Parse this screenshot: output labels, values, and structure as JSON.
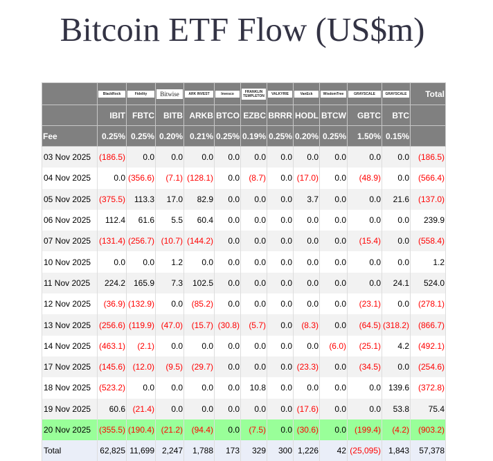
{
  "title": "Bitcoin ETF Flow (US$m)",
  "colors": {
    "header_bg": "#808080",
    "negative": "#ff0000",
    "highlight_row": "#99ff99",
    "total_row": "#eaeef8",
    "stripe": "#f2f2f2"
  },
  "issuers": [
    "BlackRock",
    "Fidelity",
    "Bitwise",
    "ARK INVEST",
    "Invesco",
    "FRANKLIN TEMPLETON",
    "VALKYRIE",
    "VanEck",
    "WisdomTree",
    "GRAYSCALE",
    "GRAYSCALE"
  ],
  "total_label": "Total",
  "tickers": [
    "IBIT",
    "FBTC",
    "BITB",
    "ARKB",
    "BTCO",
    "EZBC",
    "BRRR",
    "HODL",
    "BTCW",
    "GBTC",
    "BTC"
  ],
  "fee_label": "Fee",
  "fees": [
    "0.25%",
    "0.25%",
    "0.20%",
    "0.21%",
    "0.25%",
    "0.19%",
    "0.25%",
    "0.20%",
    "0.25%",
    "1.50%",
    "0.15%"
  ],
  "rows": [
    {
      "date": "03 Nov 2025",
      "values": [
        "(186.5)",
        "0.0",
        "0.0",
        "0.0",
        "0.0",
        "0.0",
        "0.0",
        "0.0",
        "0.0",
        "0.0",
        "0.0",
        "(186.5)"
      ]
    },
    {
      "date": "04 Nov 2025",
      "values": [
        "0.0",
        "(356.6)",
        "(7.1)",
        "(128.1)",
        "0.0",
        "(8.7)",
        "0.0",
        "(17.0)",
        "0.0",
        "(48.9)",
        "0.0",
        "(566.4)"
      ]
    },
    {
      "date": "05 Nov 2025",
      "values": [
        "(375.5)",
        "113.3",
        "17.0",
        "82.9",
        "0.0",
        "0.0",
        "0.0",
        "3.7",
        "0.0",
        "0.0",
        "21.6",
        "(137.0)"
      ]
    },
    {
      "date": "06 Nov 2025",
      "values": [
        "112.4",
        "61.6",
        "5.5",
        "60.4",
        "0.0",
        "0.0",
        "0.0",
        "0.0",
        "0.0",
        "0.0",
        "0.0",
        "239.9"
      ]
    },
    {
      "date": "07 Nov 2025",
      "values": [
        "(131.4)",
        "(256.7)",
        "(10.7)",
        "(144.2)",
        "0.0",
        "0.0",
        "0.0",
        "0.0",
        "0.0",
        "(15.4)",
        "0.0",
        "(558.4)"
      ]
    },
    {
      "date": "10 Nov 2025",
      "values": [
        "0.0",
        "0.0",
        "1.2",
        "0.0",
        "0.0",
        "0.0",
        "0.0",
        "0.0",
        "0.0",
        "0.0",
        "0.0",
        "1.2"
      ]
    },
    {
      "date": "11 Nov 2025",
      "values": [
        "224.2",
        "165.9",
        "7.3",
        "102.5",
        "0.0",
        "0.0",
        "0.0",
        "0.0",
        "0.0",
        "0.0",
        "24.1",
        "524.0"
      ]
    },
    {
      "date": "12 Nov 2025",
      "values": [
        "(36.9)",
        "(132.9)",
        "0.0",
        "(85.2)",
        "0.0",
        "0.0",
        "0.0",
        "0.0",
        "0.0",
        "(23.1)",
        "0.0",
        "(278.1)"
      ]
    },
    {
      "date": "13 Nov 2025",
      "values": [
        "(256.6)",
        "(119.9)",
        "(47.0)",
        "(15.7)",
        "(30.8)",
        "(5.7)",
        "0.0",
        "(8.3)",
        "0.0",
        "(64.5)",
        "(318.2)",
        "(866.7)"
      ]
    },
    {
      "date": "14 Nov 2025",
      "values": [
        "(463.1)",
        "(2.1)",
        "0.0",
        "0.0",
        "0.0",
        "0.0",
        "0.0",
        "0.0",
        "(6.0)",
        "(25.1)",
        "4.2",
        "(492.1)"
      ]
    },
    {
      "date": "17 Nov 2025",
      "values": [
        "(145.6)",
        "(12.0)",
        "(9.5)",
        "(29.7)",
        "0.0",
        "0.0",
        "0.0",
        "(23.3)",
        "0.0",
        "(34.5)",
        "0.0",
        "(254.6)"
      ]
    },
    {
      "date": "18 Nov 2025",
      "values": [
        "(523.2)",
        "0.0",
        "0.0",
        "0.0",
        "0.0",
        "10.8",
        "0.0",
        "0.0",
        "0.0",
        "0.0",
        "139.6",
        "(372.8)"
      ]
    },
    {
      "date": "19 Nov 2025",
      "values": [
        "60.6",
        "(21.4)",
        "0.0",
        "0.0",
        "0.0",
        "0.0",
        "0.0",
        "(17.6)",
        "0.0",
        "0.0",
        "53.8",
        "75.4"
      ]
    },
    {
      "date": "20 Nov 2025",
      "highlight": true,
      "values": [
        "(355.5)",
        "(190.4)",
        "(21.2)",
        "(94.4)",
        "0.0",
        "(7.5)",
        "0.0",
        "(30.6)",
        "0.0",
        "(199.4)",
        "(4.2)",
        "(903.2)"
      ]
    },
    {
      "date": "Total",
      "total": true,
      "values": [
        "62,825",
        "11,699",
        "2,247",
        "1,788",
        "173",
        "329",
        "300",
        "1,226",
        "42",
        "(25,095)",
        "1,843",
        "57,378"
      ]
    }
  ]
}
